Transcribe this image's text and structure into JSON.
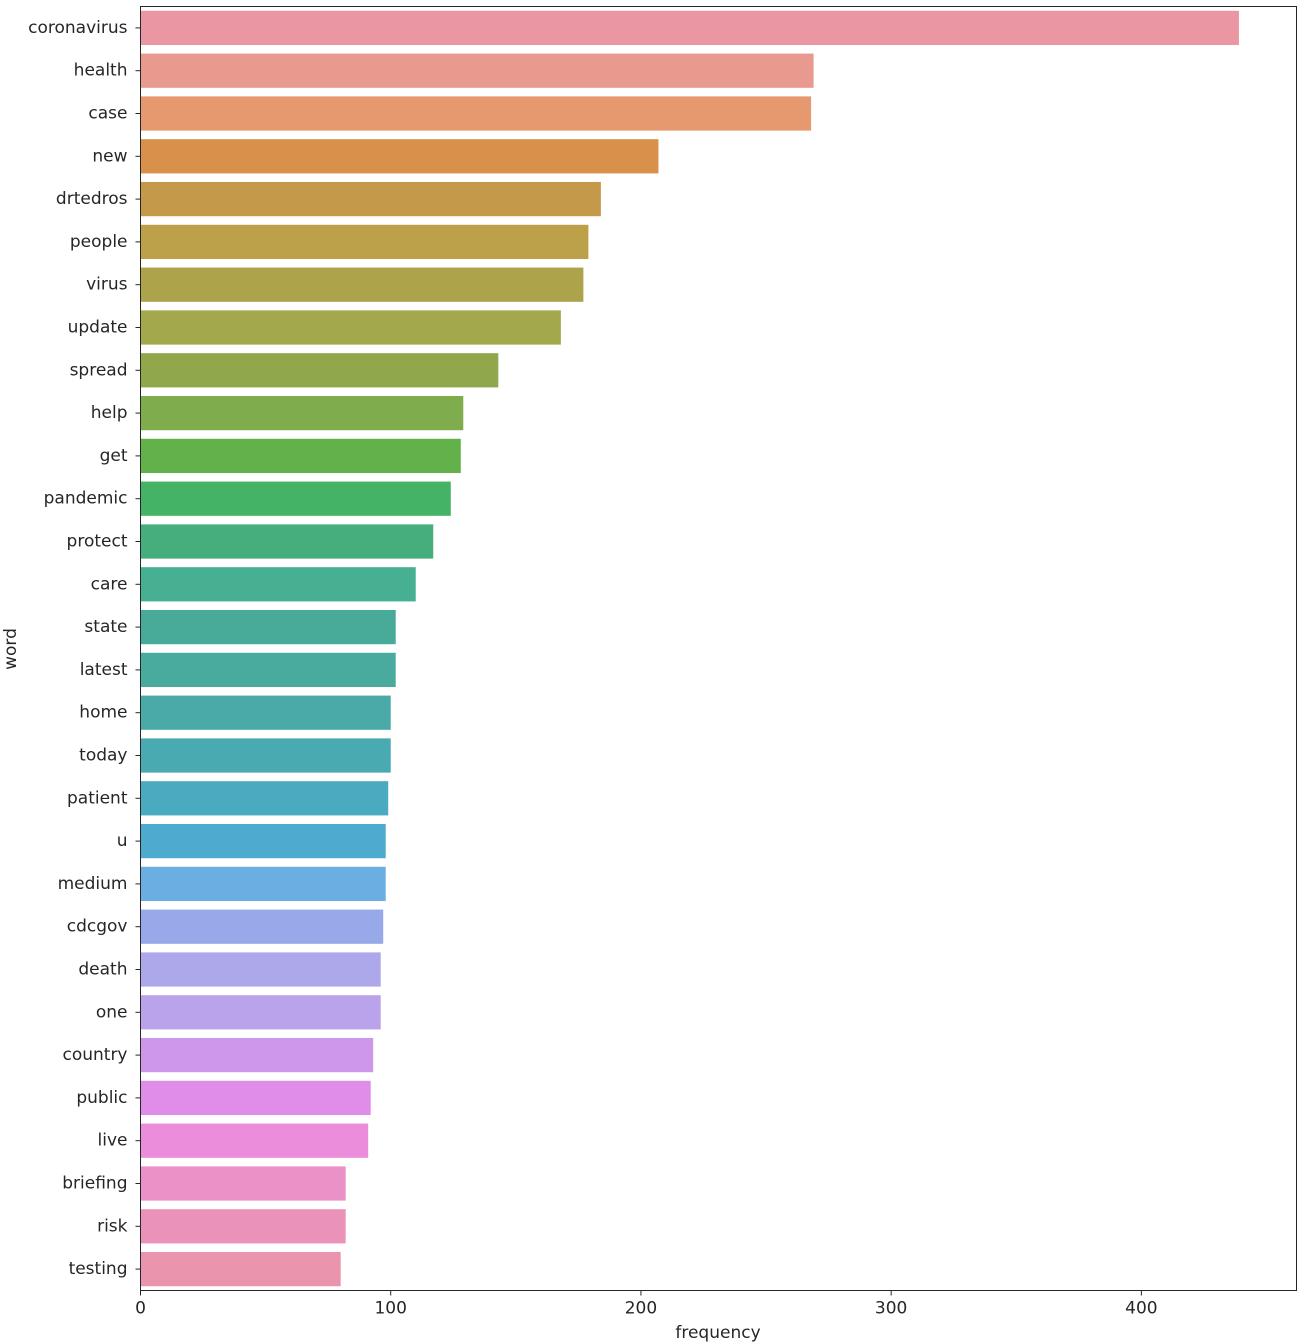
{
  "chart_data": {
    "type": "bar",
    "orientation": "horizontal",
    "title": "",
    "xlabel": "frequency",
    "ylabel": "word",
    "xlim": [
      0,
      462
    ],
    "xticks": [
      0,
      100,
      200,
      300,
      400
    ],
    "grid": false,
    "categories": [
      "coronavirus",
      "health",
      "case",
      "new",
      "drtedros",
      "people",
      "virus",
      "update",
      "spread",
      "help",
      "get",
      "pandemic",
      "protect",
      "care",
      "state",
      "latest",
      "home",
      "today",
      "patient",
      "u",
      "medium",
      "cdcgov",
      "death",
      "one",
      "country",
      "public",
      "live",
      "briefing",
      "risk",
      "testing"
    ],
    "values": [
      439,
      269,
      268,
      207,
      184,
      179,
      177,
      168,
      143,
      129,
      128,
      124,
      117,
      110,
      102,
      102,
      100,
      100,
      99,
      98,
      98,
      97,
      96,
      96,
      93,
      92,
      91,
      82,
      82,
      80
    ],
    "colors": [
      "#ea97a3",
      "#e99a8f",
      "#e6986f",
      "#d8904a",
      "#c49a4a",
      "#bca14a",
      "#aca34b",
      "#a2a84b",
      "#90a74b",
      "#7fac4c",
      "#62b14a",
      "#45b365",
      "#46ae7d",
      "#48b092",
      "#48ab9a",
      "#49ab9e",
      "#4aaaa8",
      "#4aaab2",
      "#4aaabf",
      "#4dabd0",
      "#6baee2",
      "#97a9e8",
      "#ada8ea",
      "#bba3eb",
      "#cf97ec",
      "#e08dea",
      "#eb8ddb",
      "#ea91c7",
      "#eb92b8",
      "#ea94ae"
    ]
  }
}
